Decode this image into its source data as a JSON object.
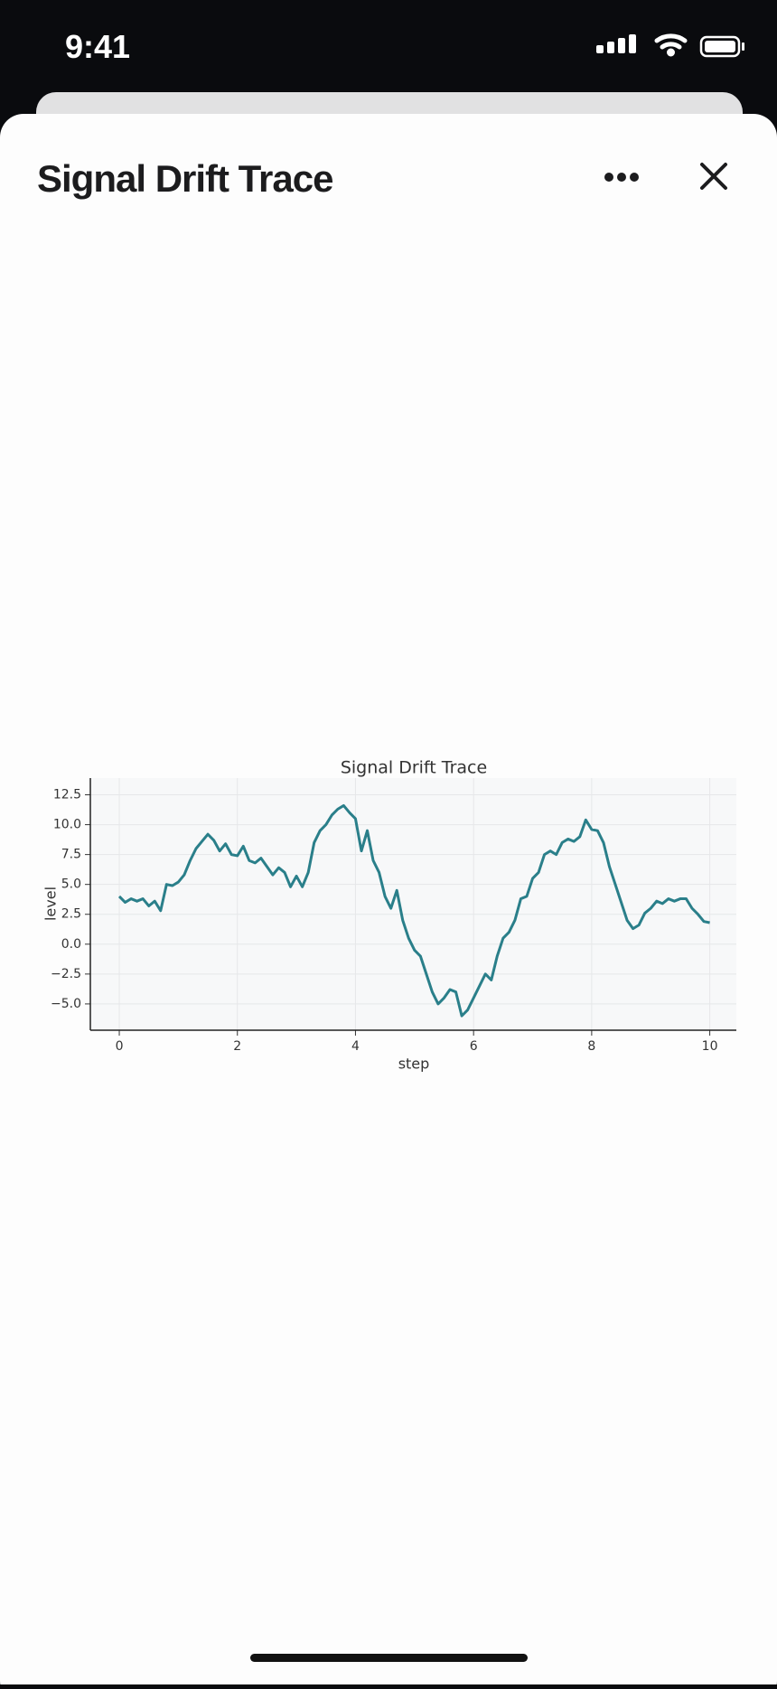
{
  "status_bar": {
    "time": "9:41"
  },
  "header": {
    "title": "Signal Drift Trace"
  },
  "chart_data": {
    "type": "line",
    "title": "Signal Drift Trace",
    "x_label": "step",
    "y_label": "level",
    "x": [
      0,
      0.1,
      0.2,
      0.3,
      0.4,
      0.5,
      0.6,
      0.7,
      0.8,
      0.9,
      1,
      1.1,
      1.2,
      1.3,
      1.4,
      1.5,
      1.6,
      1.7,
      1.8,
      1.9,
      2,
      2.1,
      2.2,
      2.3,
      2.4,
      2.5,
      2.6,
      2.7,
      2.8,
      2.9,
      3,
      3.1,
      3.2,
      3.3,
      3.4,
      3.5,
      3.6,
      3.7,
      3.8,
      3.9,
      4,
      4.1,
      4.2,
      4.3,
      4.4,
      4.5,
      4.6,
      4.7,
      4.8,
      4.9,
      5,
      5.1,
      5.2,
      5.3,
      5.4,
      5.5,
      5.6,
      5.7,
      5.8,
      5.9,
      6,
      6.1,
      6.2,
      6.3,
      6.4,
      6.5,
      6.6,
      6.7,
      6.8,
      6.9,
      7,
      7.1,
      7.2,
      7.3,
      7.4,
      7.5,
      7.6,
      7.7,
      7.8,
      7.9,
      8,
      8.1,
      8.2,
      8.3,
      8.4,
      8.5,
      8.6,
      8.7,
      8.8,
      8.9,
      9,
      9.1,
      9.2,
      9.3,
      9.4,
      9.5,
      9.6,
      9.7,
      9.8,
      9.9,
      10
    ],
    "series": [
      {
        "name": "level",
        "color": "#2a7f8a",
        "values": [
          4.0,
          3.5,
          3.8,
          3.6,
          3.8,
          3.2,
          3.6,
          2.8,
          5.0,
          4.9,
          5.2,
          5.8,
          7.0,
          8.0,
          8.6,
          9.2,
          8.7,
          7.8,
          8.4,
          7.5,
          7.4,
          8.2,
          7.0,
          6.8,
          7.2,
          6.5,
          5.8,
          6.4,
          6.0,
          4.8,
          5.7,
          4.8,
          6.0,
          8.5,
          9.5,
          10.0,
          10.8,
          11.3,
          11.6,
          11.0,
          10.5,
          7.8,
          9.5,
          7.0,
          6.0,
          4.0,
          3.0,
          4.5,
          2.0,
          0.5,
          -0.5,
          -1.0,
          -2.5,
          -4.0,
          -5.0,
          -4.5,
          -3.8,
          -4.0,
          -6.0,
          -5.5,
          -4.5,
          -3.5,
          -2.5,
          -3.0,
          -1.0,
          0.5,
          1.0,
          2.0,
          3.8,
          4.0,
          5.5,
          6.0,
          7.5,
          7.8,
          7.5,
          8.5,
          8.8,
          8.6,
          9.0,
          10.4,
          9.6,
          9.5,
          8.5,
          6.5,
          5.0,
          3.5,
          2.0,
          1.3,
          1.6,
          2.6,
          3.0,
          3.6,
          3.4,
          3.8,
          3.6,
          3.8,
          3.8,
          3.0,
          2.5,
          1.9,
          1.8
        ]
      }
    ],
    "xlim": [
      -0.49,
      10.45
    ],
    "ylim": [
      -7.2,
      13.9
    ],
    "xticks": [
      0,
      2,
      4,
      6,
      8,
      10
    ],
    "yticks": [
      {
        "value": -5,
        "label": "−5.0"
      },
      {
        "value": -2.5,
        "label": "−2.5"
      },
      {
        "value": 0,
        "label": "0.0"
      },
      {
        "value": 2.5,
        "label": "2.5"
      },
      {
        "value": 5,
        "label": "5.0"
      },
      {
        "value": 7.5,
        "label": "7.5"
      },
      {
        "value": 10,
        "label": "10.0"
      },
      {
        "value": 12.5,
        "label": "12.5"
      }
    ],
    "grid": true
  }
}
